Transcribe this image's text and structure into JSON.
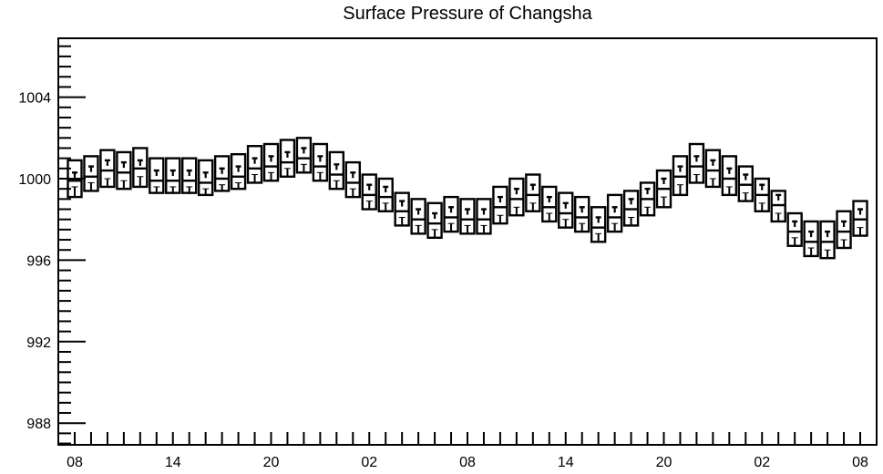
{
  "chart_data": {
    "type": "boxplot",
    "title": "Surface Pressure of Changsha",
    "xlabel": "",
    "ylabel": "",
    "ylim": [
      987,
      1007
    ],
    "y_ticks": [
      988,
      992,
      996,
      1000,
      1004
    ],
    "x_tick_labels": [
      "08",
      "14",
      "20",
      "02",
      "08",
      "14",
      "20",
      "02",
      "08"
    ],
    "x_tick_positions": [
      0,
      6,
      12,
      18,
      24,
      30,
      36,
      42,
      48
    ],
    "x_minor_every": 1,
    "grid": false,
    "legend": "none",
    "colors": {
      "box": "#000000",
      "background": "#ffffff"
    },
    "boxes": [
      {
        "t": 0,
        "min": 999.1,
        "q1": 999.6,
        "median": 999.9,
        "q3": 1000.3,
        "max": 1000.9
      },
      {
        "t": 1,
        "min": 999.4,
        "q1": 999.8,
        "median": 1000.1,
        "q3": 1000.6,
        "max": 1001.1
      },
      {
        "t": 2,
        "min": 999.6,
        "q1": 1000.0,
        "median": 1000.4,
        "q3": 1000.9,
        "max": 1001.4
      },
      {
        "t": 3,
        "min": 999.5,
        "q1": 999.9,
        "median": 1000.3,
        "q3": 1000.8,
        "max": 1001.3
      },
      {
        "t": 4,
        "min": 999.6,
        "q1": 1000.1,
        "median": 1000.5,
        "q3": 1000.9,
        "max": 1001.5
      },
      {
        "t": 5,
        "min": 999.3,
        "q1": 999.6,
        "median": 999.9,
        "q3": 1000.4,
        "max": 1001.0
      },
      {
        "t": 6,
        "min": 999.3,
        "q1": 999.6,
        "median": 999.9,
        "q3": 1000.4,
        "max": 1001.0
      },
      {
        "t": 7,
        "min": 999.3,
        "q1": 999.6,
        "median": 999.9,
        "q3": 1000.4,
        "max": 1001.0
      },
      {
        "t": 8,
        "min": 999.2,
        "q1": 999.5,
        "median": 999.8,
        "q3": 1000.3,
        "max": 1000.9
      },
      {
        "t": 9,
        "min": 999.4,
        "q1": 999.7,
        "median": 1000.0,
        "q3": 1000.5,
        "max": 1001.1
      },
      {
        "t": 10,
        "min": 999.5,
        "q1": 999.8,
        "median": 1000.1,
        "q3": 1000.6,
        "max": 1001.2
      },
      {
        "t": 11,
        "min": 999.8,
        "q1": 1000.2,
        "median": 1000.5,
        "q3": 1001.0,
        "max": 1001.6
      },
      {
        "t": 12,
        "min": 999.9,
        "q1": 1000.3,
        "median": 1000.6,
        "q3": 1001.1,
        "max": 1001.7
      },
      {
        "t": 13,
        "min": 1000.1,
        "q1": 1000.5,
        "median": 1000.8,
        "q3": 1001.3,
        "max": 1001.9
      },
      {
        "t": 14,
        "min": 1000.3,
        "q1": 1000.7,
        "median": 1001.0,
        "q3": 1001.5,
        "max": 1002.0
      },
      {
        "t": 15,
        "min": 999.9,
        "q1": 1000.3,
        "median": 1000.6,
        "q3": 1001.1,
        "max": 1001.7
      },
      {
        "t": 16,
        "min": 999.5,
        "q1": 999.9,
        "median": 1000.2,
        "q3": 1000.7,
        "max": 1001.3
      },
      {
        "t": 17,
        "min": 999.1,
        "q1": 999.5,
        "median": 999.8,
        "q3": 1000.3,
        "max": 1000.8
      },
      {
        "t": 18,
        "min": 998.5,
        "q1": 998.9,
        "median": 999.2,
        "q3": 999.7,
        "max": 1000.2
      },
      {
        "t": 19,
        "min": 998.4,
        "q1": 998.8,
        "median": 999.1,
        "q3": 999.6,
        "max": 1000.0
      },
      {
        "t": 20,
        "min": 997.7,
        "q1": 998.1,
        "median": 998.4,
        "q3": 998.9,
        "max": 999.3
      },
      {
        "t": 21,
        "min": 997.3,
        "q1": 997.7,
        "median": 998.0,
        "q3": 998.5,
        "max": 999.0
      },
      {
        "t": 22,
        "min": 997.1,
        "q1": 997.5,
        "median": 997.8,
        "q3": 998.3,
        "max": 998.8
      },
      {
        "t": 23,
        "min": 997.4,
        "q1": 997.8,
        "median": 998.1,
        "q3": 998.6,
        "max": 999.1
      },
      {
        "t": 24,
        "min": 997.3,
        "q1": 997.7,
        "median": 998.0,
        "q3": 998.5,
        "max": 999.0
      },
      {
        "t": 25,
        "min": 997.3,
        "q1": 997.7,
        "median": 998.0,
        "q3": 998.5,
        "max": 999.0
      },
      {
        "t": 26,
        "min": 997.8,
        "q1": 998.2,
        "median": 998.6,
        "q3": 999.1,
        "max": 999.6
      },
      {
        "t": 27,
        "min": 998.2,
        "q1": 998.6,
        "median": 999.0,
        "q3": 999.5,
        "max": 1000.0
      },
      {
        "t": 28,
        "min": 998.4,
        "q1": 998.8,
        "median": 999.2,
        "q3": 999.7,
        "max": 1000.2
      },
      {
        "t": 29,
        "min": 997.9,
        "q1": 998.3,
        "median": 998.6,
        "q3": 999.1,
        "max": 999.6
      },
      {
        "t": 30,
        "min": 997.6,
        "q1": 998.0,
        "median": 998.3,
        "q3": 998.8,
        "max": 999.3
      },
      {
        "t": 31,
        "min": 997.4,
        "q1": 997.8,
        "median": 998.1,
        "q3": 998.6,
        "max": 999.1
      },
      {
        "t": 32,
        "min": 996.9,
        "q1": 997.3,
        "median": 997.6,
        "q3": 998.1,
        "max": 998.6
      },
      {
        "t": 33,
        "min": 997.4,
        "q1": 997.8,
        "median": 998.1,
        "q3": 998.6,
        "max": 999.2
      },
      {
        "t": 34,
        "min": 997.7,
        "q1": 998.1,
        "median": 998.5,
        "q3": 999.0,
        "max": 999.4
      },
      {
        "t": 35,
        "min": 998.2,
        "q1": 998.6,
        "median": 999.0,
        "q3": 999.5,
        "max": 999.8
      },
      {
        "t": 36,
        "min": 998.6,
        "q1": 999.1,
        "median": 999.5,
        "q3": 1000.0,
        "max": 1000.4
      },
      {
        "t": 37,
        "min": 999.2,
        "q1": 999.7,
        "median": 1000.1,
        "q3": 1000.6,
        "max": 1001.1
      },
      {
        "t": 38,
        "min": 999.8,
        "q1": 1000.2,
        "median": 1000.6,
        "q3": 1001.1,
        "max": 1001.7
      },
      {
        "t": 39,
        "min": 999.6,
        "q1": 1000.0,
        "median": 1000.4,
        "q3": 1000.9,
        "max": 1001.4
      },
      {
        "t": 40,
        "min": 999.2,
        "q1": 999.6,
        "median": 1000.0,
        "q3": 1000.5,
        "max": 1001.1
      },
      {
        "t": 41,
        "min": 998.9,
        "q1": 999.3,
        "median": 999.7,
        "q3": 1000.2,
        "max": 1000.6
      },
      {
        "t": 42,
        "min": 998.4,
        "q1": 998.8,
        "median": 999.2,
        "q3": 999.7,
        "max": 1000.0
      },
      {
        "t": 43,
        "min": 997.9,
        "q1": 998.3,
        "median": 998.7,
        "q3": 999.2,
        "max": 999.4
      },
      {
        "t": 44,
        "min": 996.7,
        "q1": 997.1,
        "median": 997.4,
        "q3": 997.9,
        "max": 998.3
      },
      {
        "t": 45,
        "min": 996.2,
        "q1": 996.6,
        "median": 996.9,
        "q3": 997.4,
        "max": 997.9
      },
      {
        "t": 46,
        "min": 996.1,
        "q1": 996.5,
        "median": 996.9,
        "q3": 997.4,
        "max": 997.9
      },
      {
        "t": 47,
        "min": 996.6,
        "q1": 997.0,
        "median": 997.4,
        "q3": 997.9,
        "max": 998.4
      },
      {
        "t": 48,
        "min": 997.2,
        "q1": 997.6,
        "median": 998.0,
        "q3": 998.5,
        "max": 998.9
      }
    ]
  }
}
